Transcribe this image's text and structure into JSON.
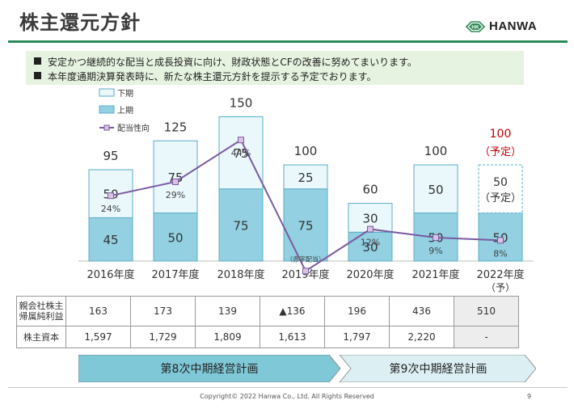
{
  "header": {
    "title": "株主還元方針",
    "logo_text": "HANWA",
    "logo_mark": "HK"
  },
  "bullets": [
    "安定かつ継続的な配当と成長投資に向け、財政状態とCFの改善に努めてまいります。",
    "本年度通期決算発表時に、新たな株主還元方針を提示する予定でおります。"
  ],
  "chart_data": {
    "type": "bar",
    "stacked": true,
    "categories": [
      "2016年度",
      "2017年度",
      "2018年度",
      "2019年度",
      "2020年度",
      "2021年度",
      "2022年度"
    ],
    "category_sublabels": [
      "",
      "",
      "",
      "",
      "",
      "",
      "（予）"
    ],
    "series": [
      {
        "name": "上期",
        "values": [
          45,
          50,
          75,
          75,
          30,
          50,
          50
        ],
        "color": "#92d0e2"
      },
      {
        "name": "下期",
        "values": [
          50,
          75,
          75,
          25,
          30,
          50,
          50
        ],
        "color": "#eaf7fb"
      }
    ],
    "line_series": {
      "name": "配当性向",
      "values": [
        24,
        29,
        44,
        -3,
        12,
        9,
        8
      ],
      "labels": [
        "24%",
        "29%",
        "44%",
        "（赤字配当）",
        "12%",
        "9%",
        "8%"
      ],
      "color": "#7a5aa0"
    },
    "totals": [
      "95",
      "125",
      "150",
      "100",
      "60",
      "100",
      "100"
    ],
    "forecast_total_note": "（予定）",
    "forecast_upper_label": "50",
    "forecast_upper_note": "（予定）",
    "legend": [
      "下期",
      "上期",
      "配当性向"
    ],
    "legend_position": "top-left",
    "forecast_color": "#c00000",
    "ylim": [
      0,
      160
    ]
  },
  "table": {
    "rows": [
      {
        "label": [
          "親会社株主",
          "帰属純利益"
        ],
        "values": [
          "163",
          "173",
          "139",
          "▲136",
          "196",
          "436",
          "510"
        ]
      },
      {
        "label": [
          "株主資本"
        ],
        "values": [
          "1,597",
          "1,729",
          "1,809",
          "1,613",
          "1,797",
          "2,220",
          "-"
        ]
      }
    ]
  },
  "plans": {
    "plan8": "第8次中期経営計画",
    "plan9": "第9次中期経営計画",
    "plan8_color": "#7fc8d8",
    "plan9_color": "#dcf0f4"
  },
  "footer": {
    "copyright": "Copyright© 2022 Hanwa Co., Ltd. All Rights Reserved",
    "page": "9"
  }
}
